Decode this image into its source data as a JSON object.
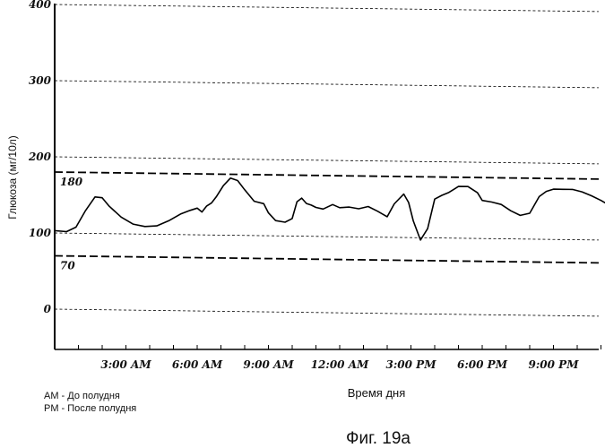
{
  "chart_data": {
    "type": "line",
    "title": "",
    "ylabel": "Глюкоза (мг/10л)",
    "xlabel": "Время дня",
    "ylim": [
      0,
      400
    ],
    "yticks": [
      "0",
      "100",
      "200",
      "300",
      "400"
    ],
    "xlim_hours": [
      0,
      24
    ],
    "xticks": [
      {
        "hour": 3,
        "label": "3:00 AM"
      },
      {
        "hour": 6,
        "label": "6:00 AM"
      },
      {
        "hour": 9,
        "label": "9:00 AM"
      },
      {
        "hour": 12,
        "label": "12:00 AM"
      },
      {
        "hour": 15,
        "label": "3:00 PM"
      },
      {
        "hour": 18,
        "label": "6:00 PM"
      },
      {
        "hour": 21,
        "label": "9:00 PM"
      }
    ],
    "reference_lines": [
      {
        "value": 180,
        "label": "180"
      },
      {
        "value": 70,
        "label": "70"
      }
    ],
    "grid": true,
    "series": [
      {
        "x": [
          0,
          0.5,
          0.9,
          1.3,
          1.7,
          2.0,
          2.3,
          2.8,
          3.3,
          3.8,
          4.3,
          4.8,
          5.3,
          5.7,
          6.0,
          6.2,
          6.4,
          6.6,
          6.8,
          7.1,
          7.4,
          7.7,
          8.0,
          8.4,
          8.8,
          9.0,
          9.3,
          9.7,
          10.0,
          10.2,
          10.4,
          10.6,
          10.8,
          11.0,
          11.3,
          11.7,
          12.0,
          12.4,
          12.8,
          13.2,
          13.6,
          14.0,
          14.3,
          14.7,
          14.9,
          15.1,
          15.4,
          15.7,
          16.0,
          16.3,
          16.6,
          17.0,
          17.4,
          17.8,
          18.0,
          18.4,
          18.8,
          19.2,
          19.6,
          20.0,
          20.4,
          20.7,
          21.0,
          21.4,
          21.8,
          22.2,
          22.6,
          23.0,
          23.4,
          23.8
        ],
        "y": [
          103,
          102,
          108,
          130,
          148,
          147,
          136,
          122,
          113,
          110,
          111,
          118,
          127,
          132,
          135,
          130,
          138,
          142,
          150,
          165,
          175,
          172,
          160,
          145,
          142,
          130,
          120,
          118,
          123,
          145,
          150,
          143,
          141,
          138,
          136,
          142,
          138,
          139,
          137,
          140,
          134,
          127,
          144,
          157,
          146,
          122,
          97,
          112,
          151,
          156,
          160,
          168,
          168,
          160,
          150,
          148,
          145,
          137,
          131,
          134,
          156,
          163,
          166,
          166,
          166,
          163,
          158,
          152,
          145,
          132
        ]
      }
    ],
    "legend": [
      "AM - До полудня",
      "PM - После полудня"
    ]
  },
  "caption": "Фиг. 19а"
}
